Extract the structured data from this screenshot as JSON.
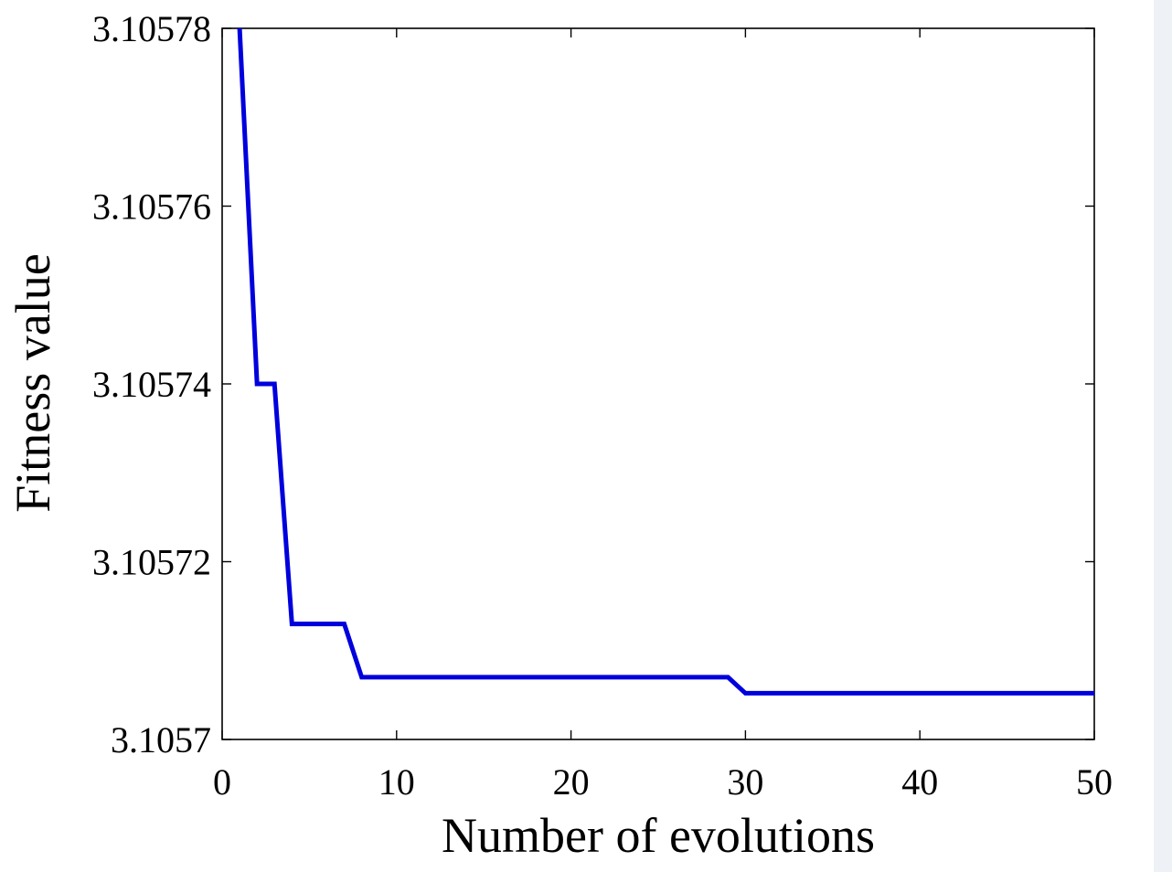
{
  "chart_data": {
    "type": "line",
    "xlabel": "Number of evolutions",
    "ylabel": "Fitness value",
    "xlim": [
      0,
      50
    ],
    "ylim": [
      3.1057,
      3.10578
    ],
    "xticks": [
      0,
      10,
      20,
      30,
      40,
      50
    ],
    "xtick_labels": [
      "0",
      "10",
      "20",
      "30",
      "40",
      "50"
    ],
    "yticks": [
      3.1057,
      3.10572,
      3.10574,
      3.10576,
      3.10578
    ],
    "ytick_labels": [
      "3.1057",
      "3.10572",
      "3.10574",
      "3.10576",
      "3.10578"
    ],
    "grid": false,
    "series": [
      {
        "color": "#0000dd",
        "x": [
          1,
          2,
          3,
          4,
          7,
          8,
          29,
          30,
          50
        ],
        "y": [
          3.10578,
          3.10574,
          3.10574,
          3.105713,
          3.105713,
          3.105707,
          3.105707,
          3.1057052,
          3.1057052
        ]
      }
    ]
  },
  "colors": {
    "line": "#0000dd",
    "axis": "#000000",
    "background": "#ffffff"
  }
}
